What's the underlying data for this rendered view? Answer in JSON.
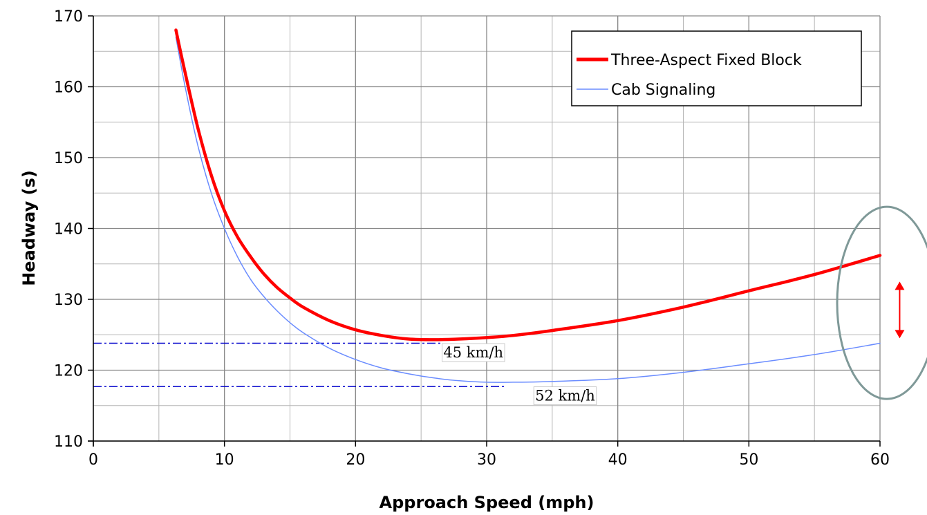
{
  "chart_data": {
    "type": "line",
    "title": "",
    "xlabel": "Approach Speed (mph)",
    "ylabel": "Headway (s)",
    "xlim": [
      0,
      60
    ],
    "ylim": [
      110,
      170
    ],
    "xticks": [
      0,
      10,
      20,
      30,
      40,
      50,
      60
    ],
    "yticks": [
      110,
      120,
      130,
      140,
      150,
      160,
      170
    ],
    "x_minor_step": 5,
    "y_minor_step": 5,
    "grid": true,
    "legend_position": "top-right",
    "series": [
      {
        "name": "Three-Aspect Fixed Block",
        "color": "#ff0000",
        "x": [
          6.3,
          7,
          8,
          9,
          10,
          11,
          12,
          13,
          14,
          15,
          16,
          18,
          20,
          22,
          24,
          26,
          28,
          30,
          32,
          35,
          40,
          45,
          50,
          55,
          60
        ],
        "y": [
          168,
          162,
          154,
          147.5,
          142.5,
          138.8,
          136,
          133.6,
          131.7,
          130.2,
          128.9,
          127,
          125.7,
          124.9,
          124.4,
          124.3,
          124.4,
          124.6,
          124.9,
          125.6,
          127,
          128.9,
          131.2,
          133.5,
          136.2
        ]
      },
      {
        "name": "Cab Signaling",
        "color": "#6a8cff",
        "x": [
          6.3,
          7,
          8,
          9,
          10,
          11,
          12,
          13,
          14,
          15,
          16,
          18,
          20,
          22,
          24,
          26,
          28,
          30,
          32,
          35,
          40,
          45,
          50,
          55,
          60
        ],
        "y": [
          167,
          160,
          151.5,
          145,
          140,
          136,
          132.8,
          130.4,
          128.4,
          126.7,
          125.3,
          123.1,
          121.5,
          120.3,
          119.5,
          118.9,
          118.5,
          118.3,
          118.3,
          118.4,
          118.8,
          119.7,
          120.9,
          122.2,
          123.8
        ]
      }
    ],
    "reference_lines": [
      {
        "y": 123.8,
        "x_start": 0,
        "x_end": 26.5,
        "color": "#0000cc"
      },
      {
        "y": 117.7,
        "x_start": 0,
        "x_end": 31.5,
        "color": "#0000cc"
      }
    ],
    "annotations": [
      {
        "text": "45 km/h",
        "x": 26.7,
        "y": 121.8
      },
      {
        "text": "52 km/h",
        "x": 33.7,
        "y": 115.7
      }
    ],
    "highlight": {
      "ellipse_color": "#7f9998",
      "arrow_color": "#ff0000",
      "arrow_x": 61.5,
      "arrow_y_top": 132.5,
      "arrow_y_bottom": 124.5
    }
  }
}
